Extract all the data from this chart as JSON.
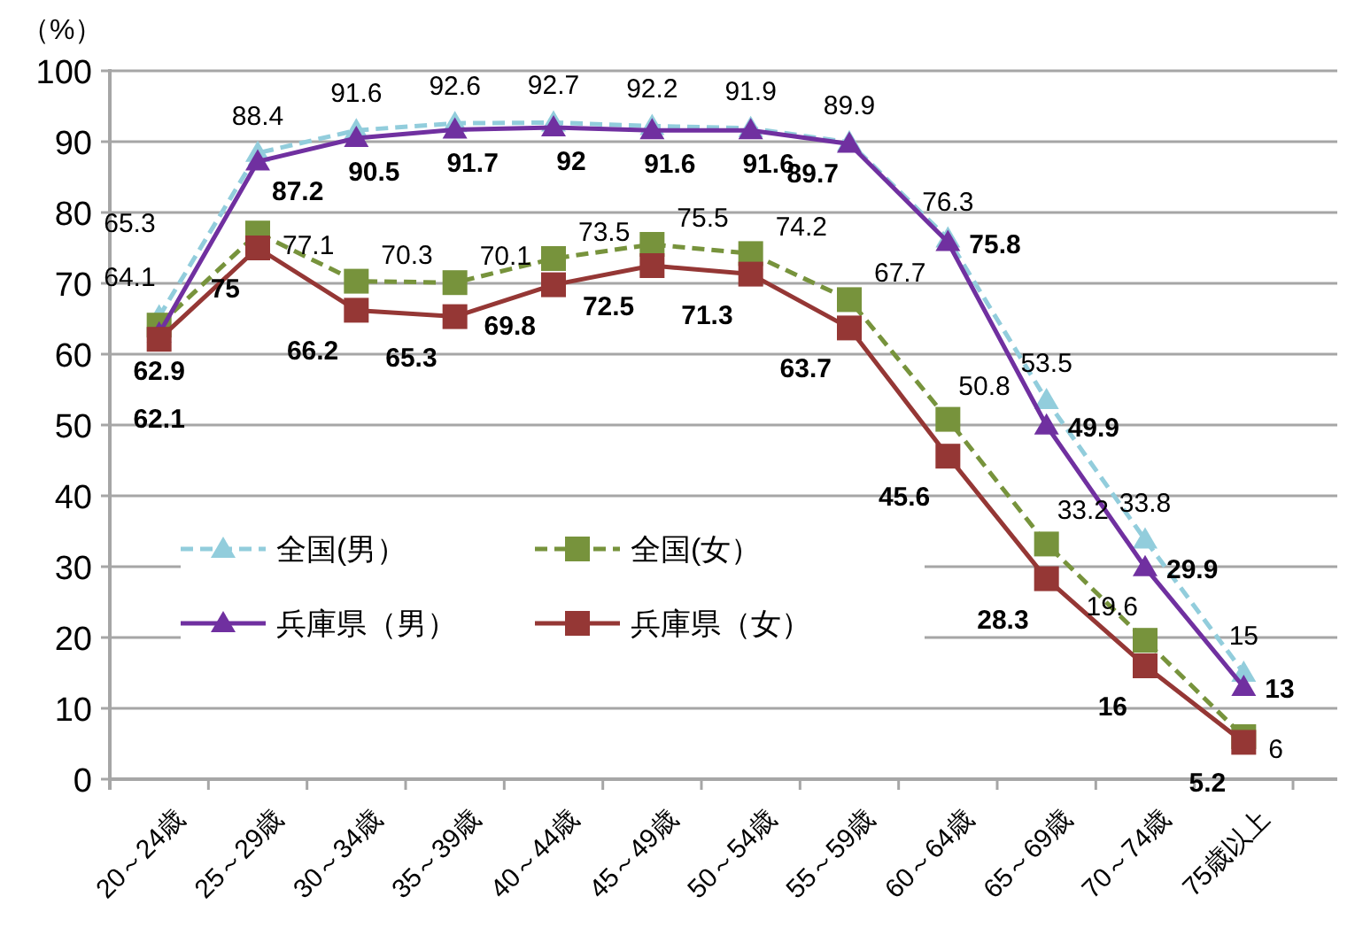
{
  "chart_data": {
    "type": "line",
    "ylabel": "（%）",
    "categories": [
      "20～24歳",
      "25～29歳",
      "30～34歳",
      "35～39歳",
      "40～44歳",
      "45～49歳",
      "50～54歳",
      "55～59歳",
      "60～64歳",
      "65～69歳",
      "70～74歳",
      "75歳以上"
    ],
    "series": [
      {
        "name": "全国(男）",
        "color": "#92cddc",
        "marker": "triangle",
        "line_style": "dashed",
        "values": [
          65.3,
          88.4,
          91.6,
          92.6,
          92.7,
          92.2,
          91.9,
          89.9,
          76.3,
          53.5,
          33.8,
          15
        ]
      },
      {
        "name": "全国(女）",
        "color": "#77933c",
        "marker": "square",
        "line_style": "dashed",
        "values": [
          64.1,
          77.1,
          70.3,
          70.1,
          73.5,
          75.5,
          74.2,
          67.7,
          50.8,
          33.2,
          19.6,
          6
        ]
      },
      {
        "name": "兵庫県（男）",
        "color": "#7030a0",
        "marker": "triangle",
        "line_style": "solid",
        "values": [
          62.9,
          87.2,
          90.5,
          91.7,
          92,
          91.6,
          91.6,
          89.7,
          75.8,
          49.9,
          29.9,
          13
        ]
      },
      {
        "name": "兵庫県（女）",
        "color": "#953735",
        "marker": "square",
        "line_style": "solid",
        "values": [
          62.1,
          75,
          66.2,
          65.3,
          69.8,
          72.5,
          71.3,
          63.7,
          45.6,
          28.3,
          16,
          5.2
        ]
      }
    ],
    "ylim": [
      0,
      100
    ],
    "yticks": [
      0,
      10,
      20,
      30,
      40,
      50,
      60,
      70,
      80,
      90,
      100
    ],
    "grid": "y",
    "legend": "bottom left",
    "data_labels": true
  }
}
